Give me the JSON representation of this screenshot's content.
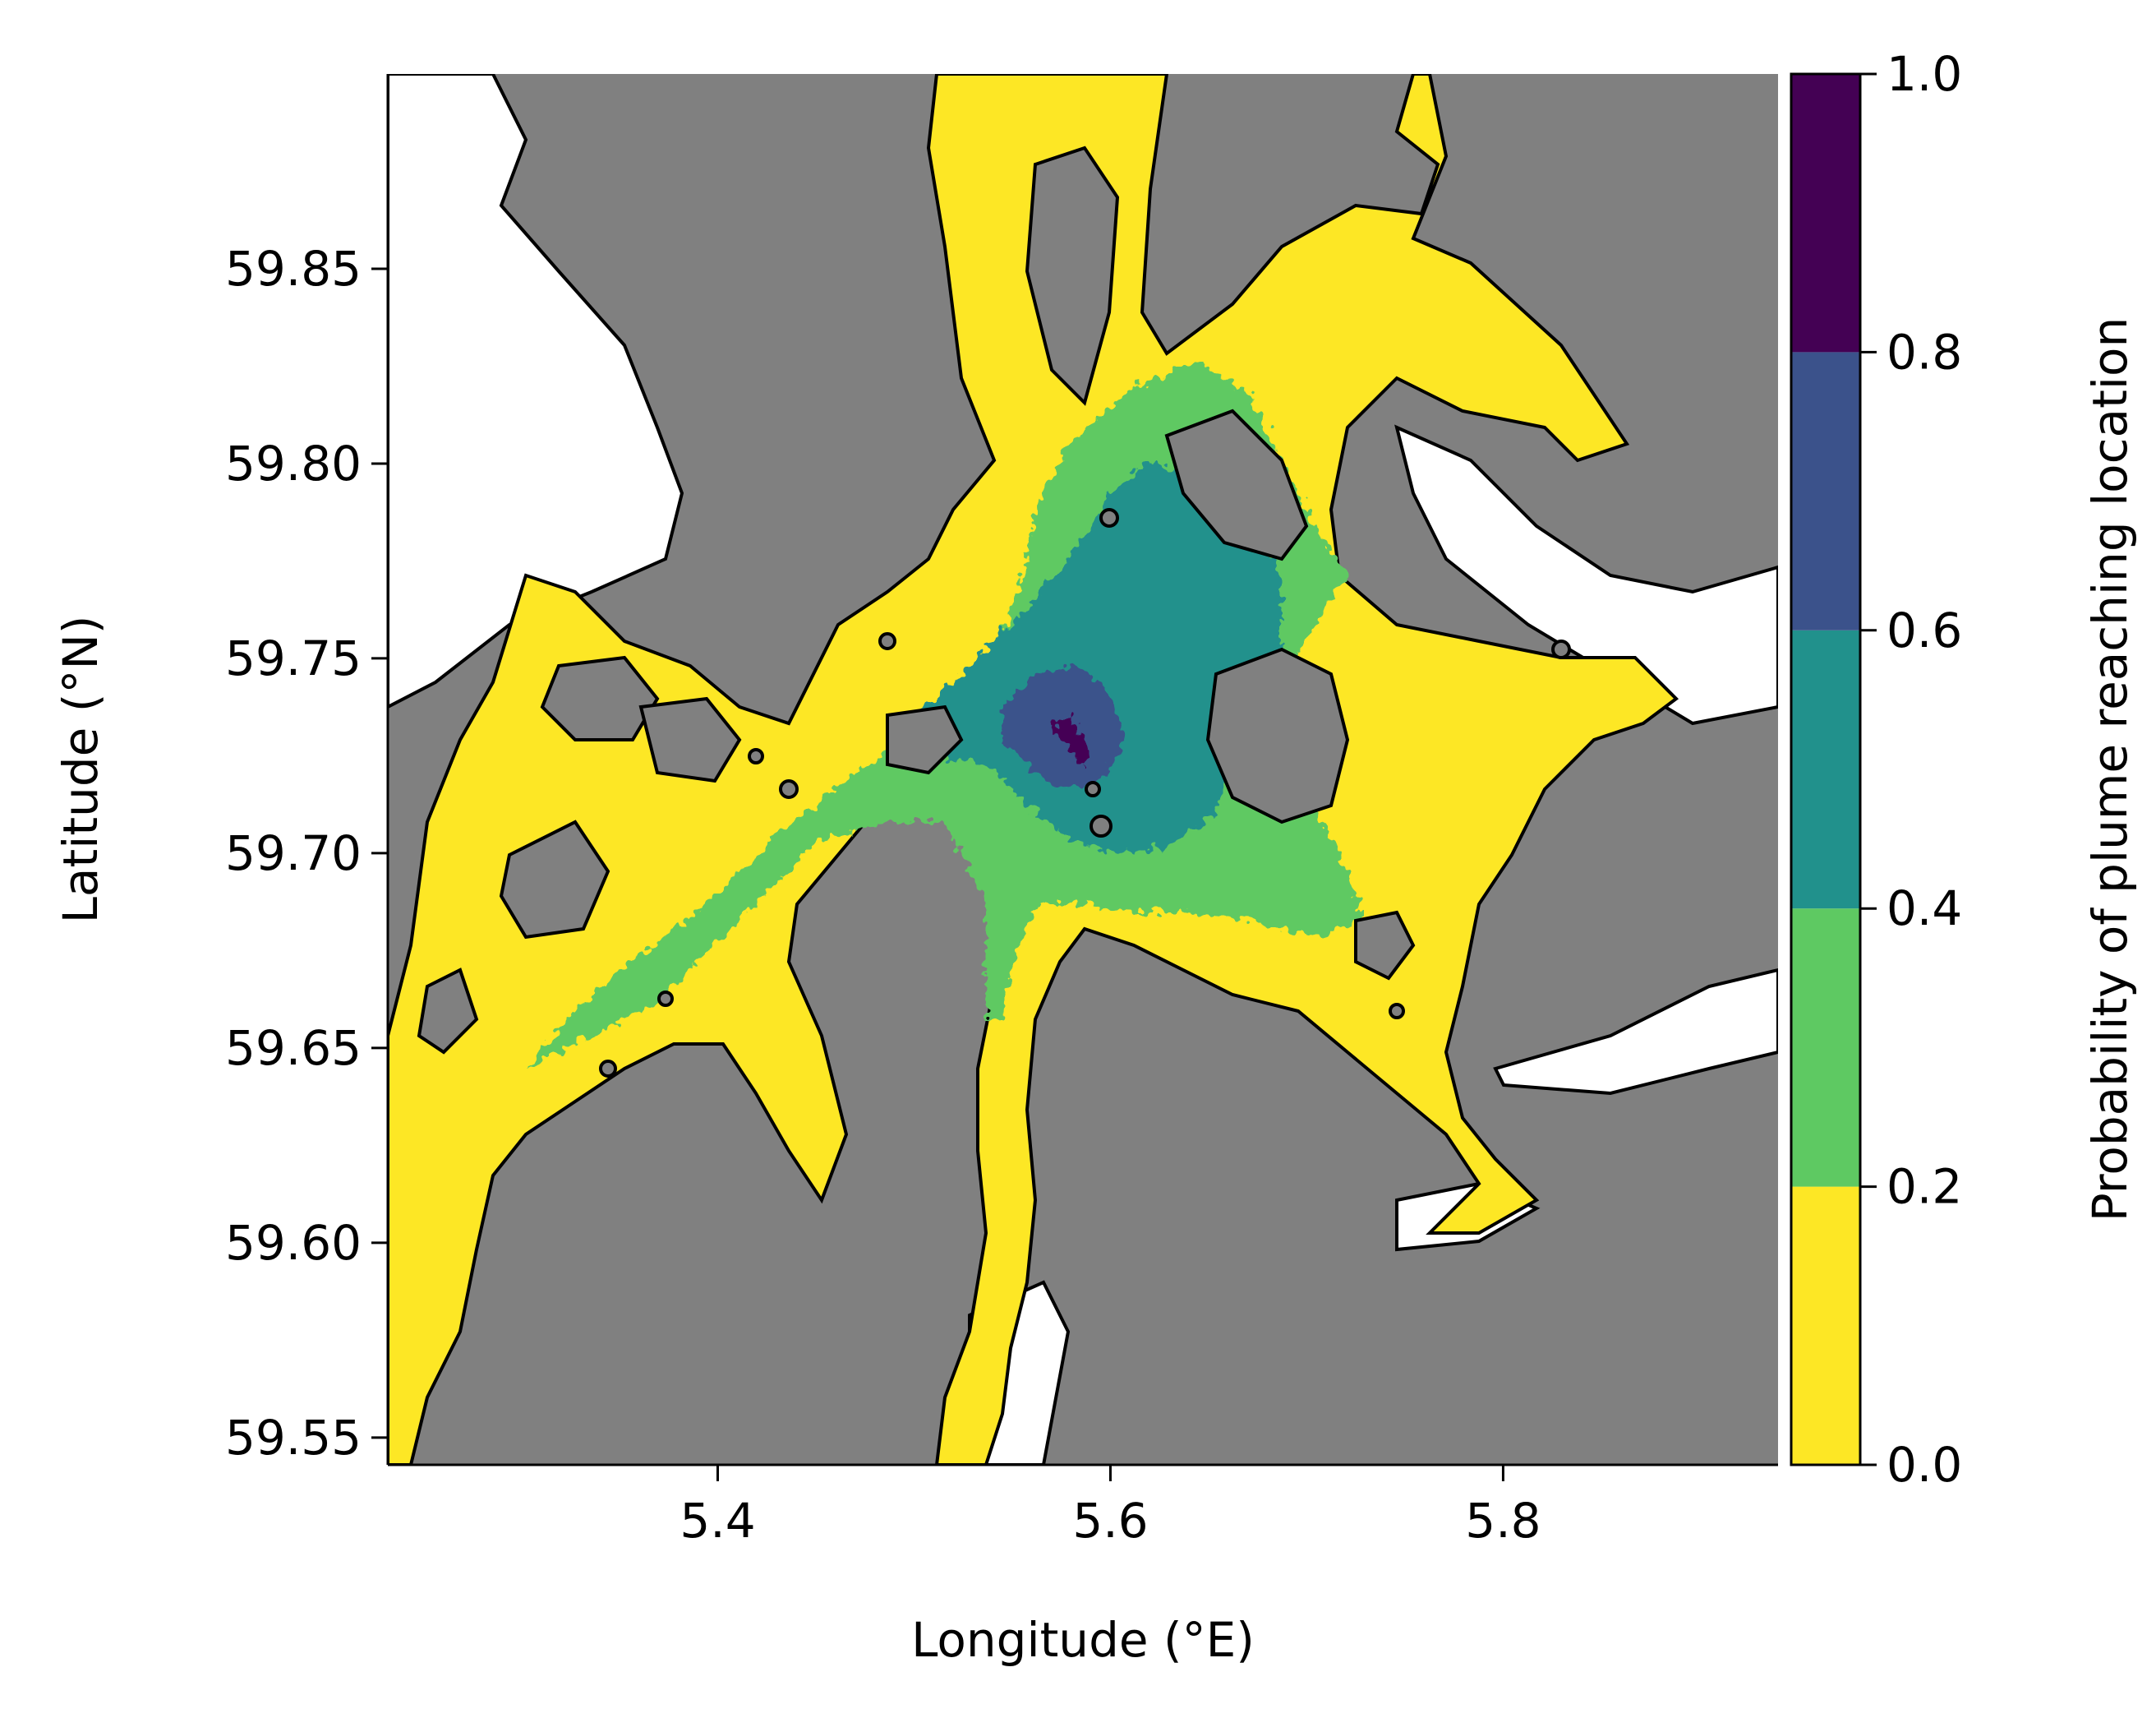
{
  "chart_data": {
    "type": "heatmap",
    "title": "",
    "xlabel": "Longitude (°E)",
    "ylabel": "Latitude (°N)",
    "xlim": [
      5.232,
      5.94
    ],
    "ylim": [
      59.543,
      59.9
    ],
    "xticks": [
      {
        "value": 5.4,
        "label": "5.4"
      },
      {
        "value": 5.6,
        "label": "5.6"
      },
      {
        "value": 5.8,
        "label": "5.8"
      }
    ],
    "yticks": [
      {
        "value": 59.55,
        "label": "59.55"
      },
      {
        "value": 59.6,
        "label": "59.60"
      },
      {
        "value": 59.65,
        "label": "59.65"
      },
      {
        "value": 59.7,
        "label": "59.70"
      },
      {
        "value": 59.75,
        "label": "59.75"
      },
      {
        "value": 59.8,
        "label": "59.80"
      },
      {
        "value": 59.85,
        "label": "59.85"
      }
    ],
    "grid": false,
    "land_color": "#808080",
    "coastline_color": "#000000",
    "colorbar": {
      "label": "Probability of plume reaching location",
      "range": [
        0,
        1
      ],
      "levels": [
        {
          "from": 0.0,
          "to": 0.2,
          "color": "#fde725"
        },
        {
          "from": 0.2,
          "to": 0.4,
          "color": "#5ec962"
        },
        {
          "from": 0.4,
          "to": 0.6,
          "color": "#21918c"
        },
        {
          "from": 0.6,
          "to": 0.8,
          "color": "#3b528b"
        },
        {
          "from": 0.8,
          "to": 1.0,
          "color": "#440154"
        }
      ],
      "ticks": [
        {
          "value": 0.0,
          "label": "0.0"
        },
        {
          "value": 0.2,
          "label": "0.2"
        },
        {
          "value": 0.4,
          "label": "0.4"
        },
        {
          "value": 0.6,
          "label": "0.6"
        },
        {
          "value": 0.8,
          "label": "0.8"
        },
        {
          "value": 1.0,
          "label": "1.0"
        }
      ]
    },
    "peak_location": {
      "lon": 5.57,
      "lat": 59.725,
      "probability": 0.9
    }
  }
}
